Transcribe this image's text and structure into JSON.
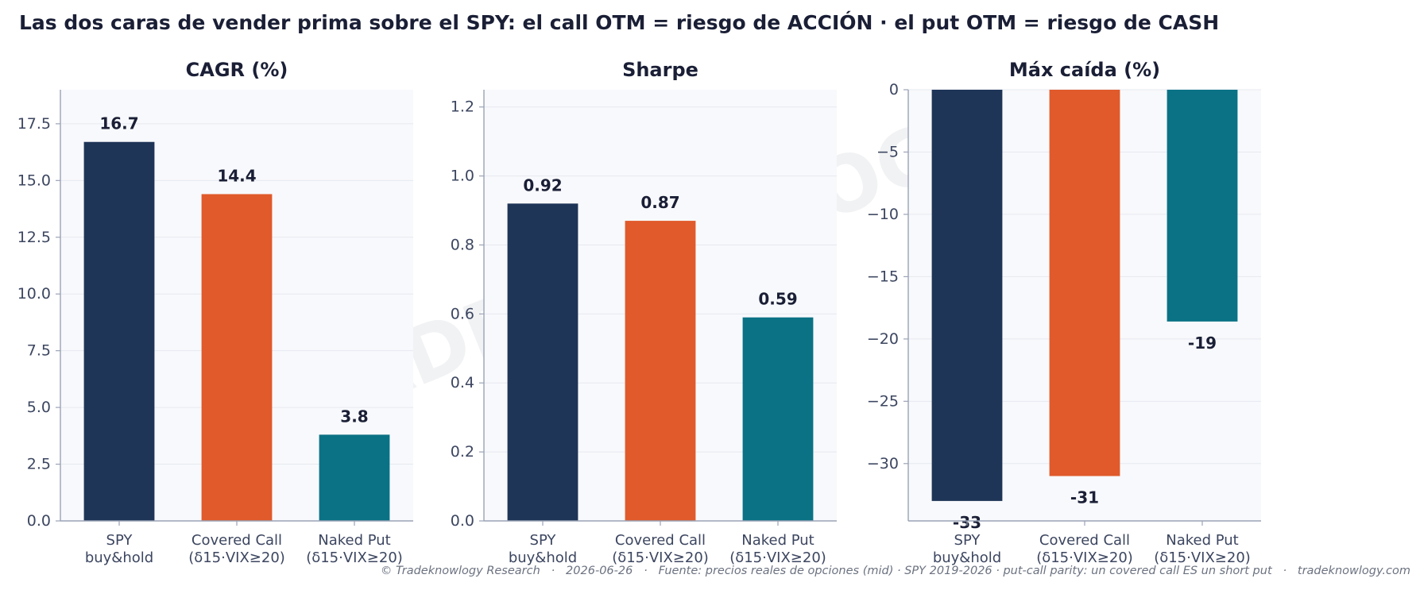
{
  "title": "Las dos caras de vender prima sobre el SPY: el call OTM = riesgo de ACCIÓN · el put OTM = riesgo de CASH",
  "watermark": "TRADEKNOWLOGY",
  "footer": "© Tradeknowlogy Research   ·   2026-06-26   ·   Fuente: precios reales de opciones (mid) · SPY 2019-2026 · put-call parity: un covered call ES un short put   ·   tradeknowlogy.com",
  "colors": {
    "spy": "#1e3557",
    "covered_call": "#e05a2b",
    "naked_put": "#0b7285",
    "panel_bg": "#f8f9fc",
    "text": "#1a1f36",
    "axis": "#9aa3b5"
  },
  "chart_data": [
    {
      "type": "bar",
      "title": "CAGR (%)",
      "categories": [
        "SPY\nbuy&hold",
        "Covered Call\n(δ15·VIX≥20)",
        "Naked Put\n(δ15·VIX≥20)"
      ],
      "values": [
        16.7,
        14.4,
        3.8
      ],
      "value_labels": [
        "16.7",
        "14.4",
        "3.8"
      ],
      "ylim": [
        0,
        19
      ],
      "yticks": [
        0,
        2.5,
        5,
        7.5,
        10,
        12.5,
        15,
        17.5
      ],
      "ytick_labels": [
        "0.0",
        "2.5",
        "5.0",
        "7.5",
        "10.0",
        "12.5",
        "15.0",
        "17.5"
      ],
      "grid": true
    },
    {
      "type": "bar",
      "title": "Sharpe",
      "categories": [
        "SPY\nbuy&hold",
        "Covered Call\n(δ15·VIX≥20)",
        "Naked Put\n(δ15·VIX≥20)"
      ],
      "values": [
        0.92,
        0.87,
        0.59
      ],
      "value_labels": [
        "0.92",
        "0.87",
        "0.59"
      ],
      "ylim": [
        0,
        1.25
      ],
      "yticks": [
        0,
        0.2,
        0.4,
        0.6,
        0.8,
        1.0,
        1.2
      ],
      "ytick_labels": [
        "0.0",
        "0.2",
        "0.4",
        "0.6",
        "0.8",
        "1.0",
        "1.2"
      ],
      "grid": true
    },
    {
      "type": "bar",
      "title": "Máx caída (%)",
      "categories": [
        "SPY\nbuy&hold",
        "Covered Call\n(δ15·VIX≥20)",
        "Naked Put\n(δ15·VIX≥20)"
      ],
      "values": [
        -33,
        -31,
        -18.6
      ],
      "value_labels": [
        "-33",
        "-31",
        "-19"
      ],
      "ylim": [
        -34.6,
        0
      ],
      "yticks": [
        0,
        -5,
        -10,
        -15,
        -20,
        -25,
        -30
      ],
      "ytick_labels": [
        "0",
        "−5",
        "−10",
        "−15",
        "−20",
        "−25",
        "−30"
      ],
      "grid": true
    }
  ]
}
